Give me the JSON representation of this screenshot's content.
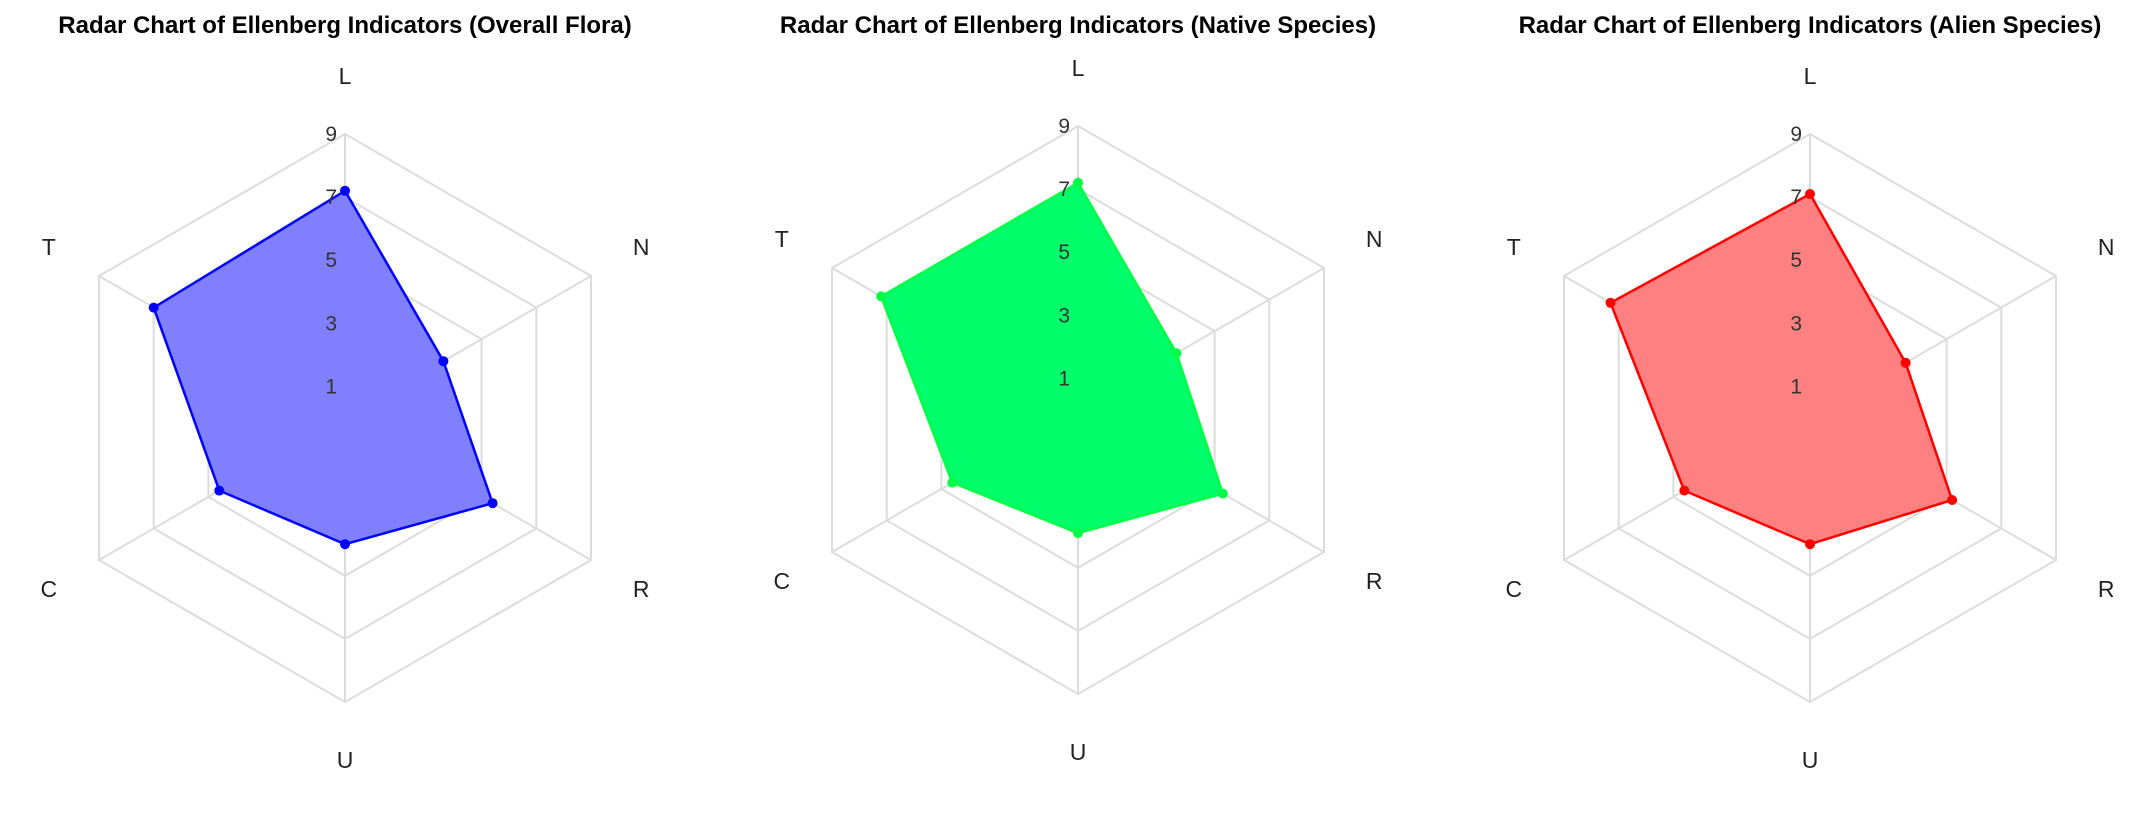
{
  "chart_data": [
    {
      "type": "radar",
      "title": "Radar Chart of Ellenberg Indicators (Overall Flora)",
      "axes": [
        "L",
        "N",
        "R",
        "U",
        "C",
        "T"
      ],
      "radial_ticks": [
        "1",
        "3",
        "5",
        "7",
        "9"
      ],
      "rlim": [
        0,
        9
      ],
      "series": [
        {
          "values": [
            7.2,
            3.6,
            5.4,
            4.0,
            4.6,
            7.0
          ],
          "color": "#0000ff",
          "fill": "#8080ff"
        }
      ]
    },
    {
      "type": "radar",
      "title": "Radar Chart of Ellenberg Indicators (Native Species)",
      "axes": [
        "L",
        "N",
        "R",
        "U",
        "C",
        "T"
      ],
      "radial_ticks": [
        "1",
        "3",
        "5",
        "7",
        "9"
      ],
      "rlim": [
        0,
        9
      ],
      "series": [
        {
          "values": [
            7.2,
            3.6,
            5.3,
            3.9,
            4.6,
            7.2
          ],
          "color": "#00ff44",
          "fill": "#00ff6a"
        }
      ]
    },
    {
      "type": "radar",
      "title": "Radar Chart of Ellenberg Indicators (Alien Species)",
      "axes": [
        "L",
        "N",
        "R",
        "U",
        "C",
        "T"
      ],
      "radial_ticks": [
        "1",
        "3",
        "5",
        "7",
        "9"
      ],
      "rlim": [
        0,
        9
      ],
      "series": [
        {
          "values": [
            7.1,
            3.5,
            5.2,
            4.0,
            4.6,
            7.3
          ],
          "color": "#ff0000",
          "fill": "#ff8080"
        }
      ]
    }
  ]
}
